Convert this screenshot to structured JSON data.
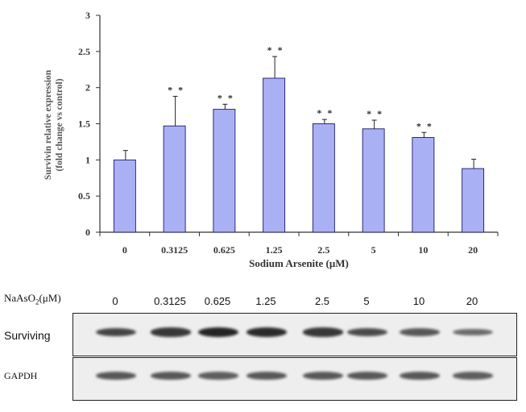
{
  "chart_data": {
    "type": "bar",
    "categories": [
      "0",
      "0.3125",
      "0.625",
      "1.25",
      "2.5",
      "5",
      "10",
      "20"
    ],
    "values": [
      1.0,
      1.47,
      1.7,
      2.13,
      1.5,
      1.43,
      1.31,
      0.88
    ],
    "errors": [
      0.13,
      0.41,
      0.07,
      0.3,
      0.06,
      0.12,
      0.07,
      0.13
    ],
    "significance": [
      "",
      "* *",
      "* *",
      "* *",
      "* *",
      "* *",
      "* *",
      ""
    ],
    "xlabel": "Sodium Arsenite (μM)",
    "ylabel_line1": "Survivin relative expression",
    "ylabel_line2": "(fold change vs control)",
    "ylim": [
      0,
      3
    ],
    "yticks": [
      "0",
      "0.5",
      "1",
      "1.5",
      "2",
      "2.5",
      "3"
    ],
    "bar_color": "#aab0f4",
    "bar_edge_color": "#1a1a6a",
    "grid": false,
    "legend": "none"
  },
  "blot": {
    "title_main": "NaAsO",
    "title_sub": "2",
    "title_unit": "(μM)",
    "concentrations": [
      "0",
      "0.3125",
      "0.625",
      "1.25",
      "2.5",
      "5",
      "10",
      "20"
    ],
    "rows": [
      {
        "name": "Surviving",
        "intensities": [
          0.75,
          0.85,
          1.0,
          0.95,
          0.85,
          0.7,
          0.6,
          0.45
        ]
      },
      {
        "name": "GAPDH",
        "intensities": [
          0.6,
          0.6,
          0.55,
          0.6,
          0.6,
          0.6,
          0.6,
          0.55
        ]
      }
    ]
  }
}
